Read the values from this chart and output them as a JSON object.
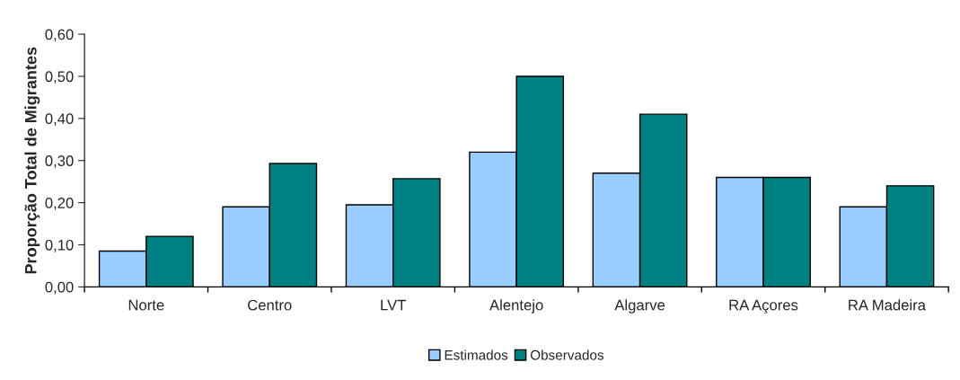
{
  "chart_data": {
    "type": "bar",
    "ylabel": "Proporção Total de Migrantes",
    "categories": [
      "Norte",
      "Centro",
      "LVT",
      "Alentejo",
      "Algarve",
      "RA Açores",
      "RA Madeira"
    ],
    "series": [
      {
        "name": "Estimados",
        "color": "#99ccff",
        "values": [
          0.085,
          0.19,
          0.195,
          0.32,
          0.27,
          0.26,
          0.19
        ]
      },
      {
        "name": "Observados",
        "color": "#008080",
        "values": [
          0.12,
          0.293,
          0.257,
          0.5,
          0.41,
          0.26,
          0.24
        ]
      }
    ],
    "ylim": [
      0,
      0.6
    ],
    "yticks": [
      {
        "value": 0,
        "label": "0,00"
      },
      {
        "value": 0.1,
        "label": "0,10"
      },
      {
        "value": 0.2,
        "label": "0,20"
      },
      {
        "value": 0.3,
        "label": "0,30"
      },
      {
        "value": 0.4,
        "label": "0,40"
      },
      {
        "value": 0.5,
        "label": "0,50"
      },
      {
        "value": 0.6,
        "label": "0,60"
      }
    ],
    "grid": false,
    "legend": "bottom"
  }
}
